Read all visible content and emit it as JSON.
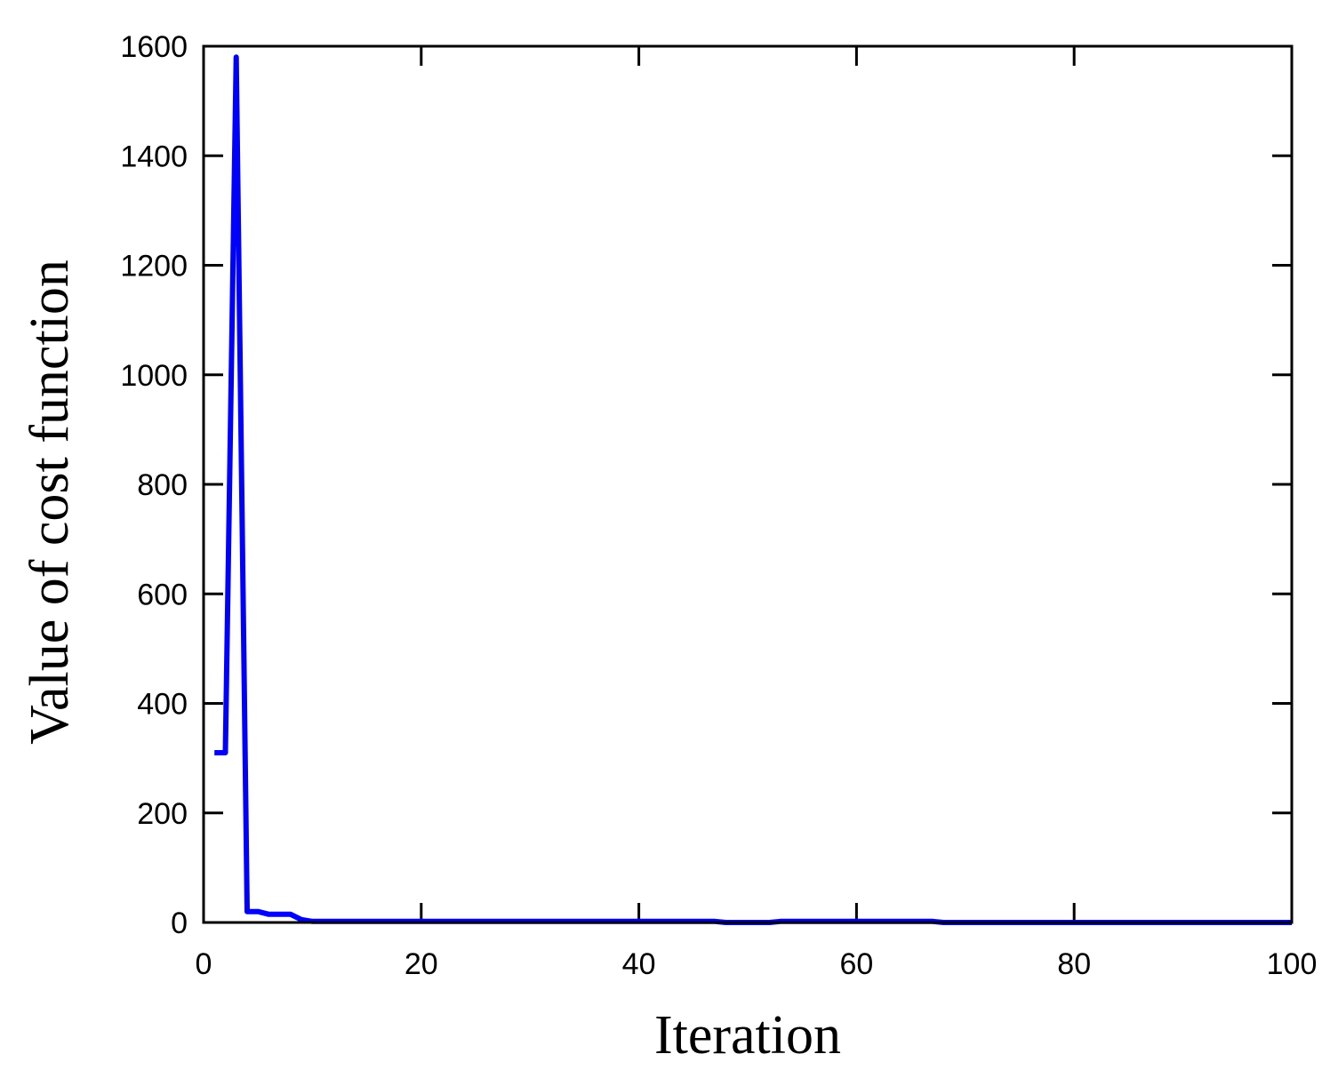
{
  "chart_data": {
    "type": "line",
    "title": "",
    "xlabel": "Iteration",
    "ylabel": "Value of cost function",
    "xlim": [
      0,
      100
    ],
    "ylim": [
      0,
      1600
    ],
    "xticks": [
      0,
      20,
      40,
      60,
      80,
      100
    ],
    "yticks": [
      0,
      200,
      400,
      600,
      800,
      1000,
      1200,
      1400,
      1600
    ],
    "grid": false,
    "legend": "none",
    "series": [
      {
        "color": "#0000ff",
        "x": [
          1,
          2,
          3,
          4,
          5,
          6,
          7,
          8,
          9,
          10,
          12,
          14,
          16,
          18,
          20,
          25,
          30,
          35,
          40,
          45,
          47,
          48,
          50,
          52,
          53,
          55,
          60,
          65,
          67,
          68,
          70,
          75,
          80,
          85,
          90,
          95,
          100
        ],
        "y": [
          310,
          310,
          1580,
          20,
          20,
          15,
          15,
          15,
          5,
          2,
          2,
          2,
          2,
          2,
          2,
          2,
          2,
          2,
          2,
          2,
          2,
          0,
          0,
          0,
          2,
          2,
          2,
          2,
          2,
          0,
          0,
          0,
          0,
          0,
          0,
          0,
          0
        ]
      }
    ]
  }
}
